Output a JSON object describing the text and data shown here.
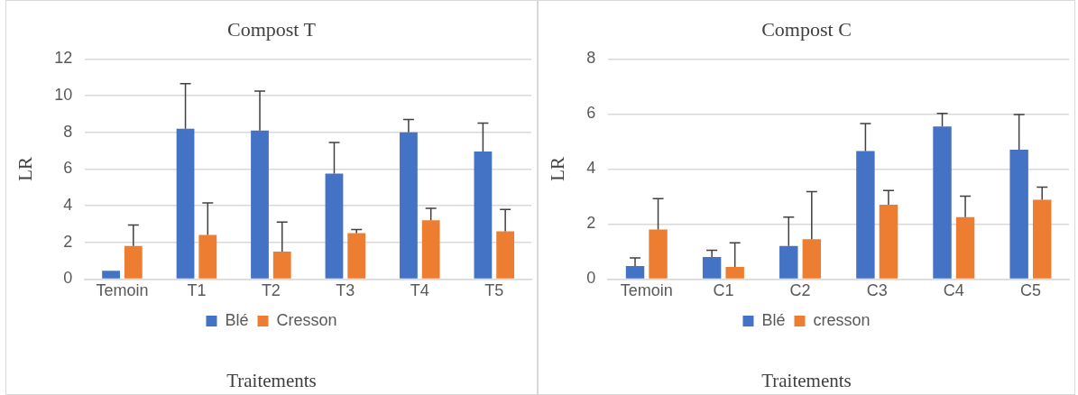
{
  "chart_data": [
    {
      "type": "bar",
      "title": "Compost T",
      "xlabel": "Traitements",
      "ylabel": "LR",
      "categories": [
        "Temoin",
        "T1",
        "T2",
        "T3",
        "T4",
        "T5"
      ],
      "series": [
        {
          "name": "Blé",
          "color": "#4472c4",
          "values": [
            0.45,
            8.2,
            8.1,
            5.75,
            8.0,
            6.95
          ],
          "errors": [
            null,
            [
              8.2,
              10.65
            ],
            [
              8.1,
              10.25
            ],
            [
              5.75,
              7.45
            ],
            [
              8.0,
              8.7
            ],
            [
              6.95,
              8.5
            ]
          ]
        },
        {
          "name": "Cresson",
          "color": "#ed7d31",
          "values": [
            1.8,
            2.4,
            1.5,
            2.5,
            3.2,
            2.6
          ],
          "errors": [
            [
              1.8,
              2.95
            ],
            [
              2.4,
              4.15
            ],
            [
              1.5,
              3.1
            ],
            [
              2.5,
              2.7
            ],
            [
              3.2,
              3.85
            ],
            [
              2.6,
              3.8
            ]
          ]
        }
      ],
      "ylim": [
        0,
        12
      ],
      "yticks": [
        0,
        2,
        4,
        6,
        8,
        10,
        12
      ],
      "grid": "y",
      "legend": "bottom"
    },
    {
      "type": "bar",
      "title": "Compost C",
      "xlabel": "Traitements",
      "ylabel": "LR",
      "categories": [
        "Temoin",
        "C1",
        "C2",
        "C3",
        "C4",
        "C5"
      ],
      "series": [
        {
          "name": "Blé",
          "color": "#4472c4",
          "values": [
            0.47,
            0.8,
            1.2,
            4.65,
            5.55,
            4.7
          ],
          "errors": [
            [
              0.47,
              0.77
            ],
            [
              0.8,
              1.05
            ],
            [
              1.2,
              2.25
            ],
            [
              4.65,
              5.65
            ],
            [
              5.55,
              6.02
            ],
            [
              4.7,
              5.98
            ]
          ]
        },
        {
          "name": "cresson",
          "color": "#ed7d31",
          "values": [
            1.8,
            0.44,
            1.45,
            2.7,
            2.25,
            2.88
          ],
          "errors": [
            [
              1.8,
              2.92
            ],
            [
              0.44,
              1.32
            ],
            [
              1.45,
              3.18
            ],
            [
              2.7,
              3.22
            ],
            [
              2.25,
              3.01
            ],
            [
              2.88,
              3.34
            ]
          ]
        }
      ],
      "ylim": [
        0,
        8
      ],
      "yticks": [
        0,
        2,
        4,
        6,
        8
      ],
      "grid": "y",
      "legend": "bottom"
    }
  ]
}
